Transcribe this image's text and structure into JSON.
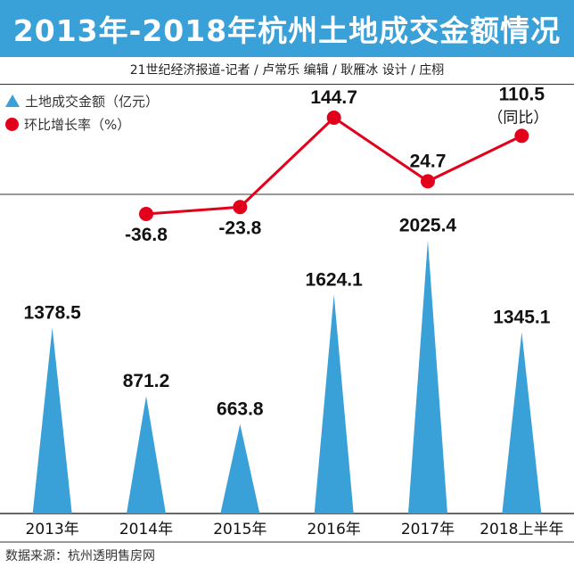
{
  "title": "2013年-2018年杭州土地成交金额情况",
  "credit": "21世纪经济报道-记者 / 卢常乐   编辑 / 耿雁冰   设计 / 庄栩",
  "legend": {
    "amount": "土地成交金额（亿元）",
    "rate": "环比增长率（%）"
  },
  "source": "数据来源：杭州透明售房网",
  "colors": {
    "bar": "#3aa0d8",
    "line": "#e3001b",
    "title_bg": "#3aa0d8"
  },
  "chart_data": {
    "type": "bar",
    "title": "2013年-2018年杭州土地成交金额情况",
    "categories": [
      "2013年",
      "2014年",
      "2015年",
      "2016年",
      "2017年",
      "2018上半年"
    ],
    "series": [
      {
        "name": "土地成交金额（亿元）",
        "type": "bar",
        "values": [
          1378.5,
          871.2,
          663.8,
          1624.1,
          2025.4,
          1345.1
        ],
        "labels": [
          "1378.5",
          "871.2",
          "663.8",
          "1624.1",
          "2025.4",
          "1345.1"
        ]
      },
      {
        "name": "环比增长率（%）",
        "type": "line",
        "values": [
          null,
          -36.8,
          -23.8,
          144.7,
          24.7,
          110.5
        ],
        "labels": [
          "",
          "-36.8",
          "-23.8",
          "144.7",
          "24.7",
          "110.5"
        ]
      }
    ],
    "annotations": [
      {
        "category": "2018上半年",
        "text": "（同比）"
      }
    ],
    "bar_ylim": [
      0,
      2200
    ],
    "rate_ylim": [
      -60,
      160
    ]
  }
}
